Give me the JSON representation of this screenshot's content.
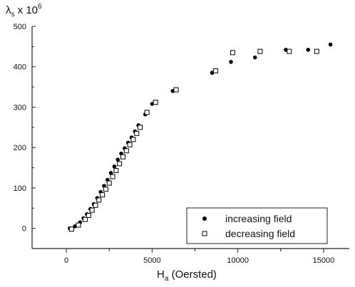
{
  "chart_data": {
    "type": "scatter",
    "xlabel": {
      "main": "H",
      "sub": "a",
      "rest": " (Oersted)"
    },
    "ylabel": {
      "main": "λ",
      "sub": "s",
      "mid": " x 10",
      "sup": "6"
    },
    "xlim": [
      -2000,
      16500
    ],
    "ylim": [
      -50,
      500
    ],
    "xticks": [
      0,
      5000,
      10000,
      15000
    ],
    "xtick_labels": [
      "0",
      "5000",
      "10000",
      "15000"
    ],
    "yticks": [
      0,
      100,
      200,
      300,
      400,
      500
    ],
    "ytick_labels": [
      "0",
      "100",
      "200",
      "300",
      "400",
      "500"
    ],
    "grid": false,
    "legend_position": "bottom-right",
    "series": [
      {
        "name": "increasing field",
        "marker": "filled-circle",
        "color": "#000000",
        "points": [
          [
            200,
            0
          ],
          [
            500,
            5
          ],
          [
            800,
            15
          ],
          [
            1000,
            25
          ],
          [
            1200,
            35
          ],
          [
            1400,
            48
          ],
          [
            1600,
            60
          ],
          [
            1800,
            75
          ],
          [
            2000,
            90
          ],
          [
            2200,
            105
          ],
          [
            2400,
            120
          ],
          [
            2600,
            137
          ],
          [
            2800,
            153
          ],
          [
            3000,
            170
          ],
          [
            3200,
            185
          ],
          [
            3400,
            198
          ],
          [
            3600,
            212
          ],
          [
            3800,
            225
          ],
          [
            4000,
            240
          ],
          [
            4200,
            255
          ],
          [
            4600,
            282
          ],
          [
            5000,
            308
          ],
          [
            6200,
            340
          ],
          [
            8500,
            385
          ],
          [
            9600,
            412
          ],
          [
            11000,
            423
          ],
          [
            12800,
            442
          ],
          [
            14100,
            442
          ],
          [
            15400,
            455
          ]
        ]
      },
      {
        "name": "decreasing field",
        "marker": "open-square",
        "color": "#000000",
        "points": [
          [
            300,
            -2
          ],
          [
            700,
            8
          ],
          [
            1100,
            22
          ],
          [
            1300,
            32
          ],
          [
            1500,
            45
          ],
          [
            1700,
            57
          ],
          [
            1900,
            70
          ],
          [
            2100,
            83
          ],
          [
            2300,
            97
          ],
          [
            2500,
            112
          ],
          [
            2700,
            128
          ],
          [
            2900,
            143
          ],
          [
            3100,
            160
          ],
          [
            3300,
            177
          ],
          [
            3500,
            192
          ],
          [
            3700,
            207
          ],
          [
            3900,
            220
          ],
          [
            4100,
            235
          ],
          [
            4300,
            250
          ],
          [
            4700,
            287
          ],
          [
            5200,
            312
          ],
          [
            6400,
            343
          ],
          [
            8700,
            390
          ],
          [
            9700,
            435
          ],
          [
            11300,
            438
          ],
          [
            13000,
            438
          ],
          [
            14600,
            438
          ]
        ]
      }
    ]
  }
}
